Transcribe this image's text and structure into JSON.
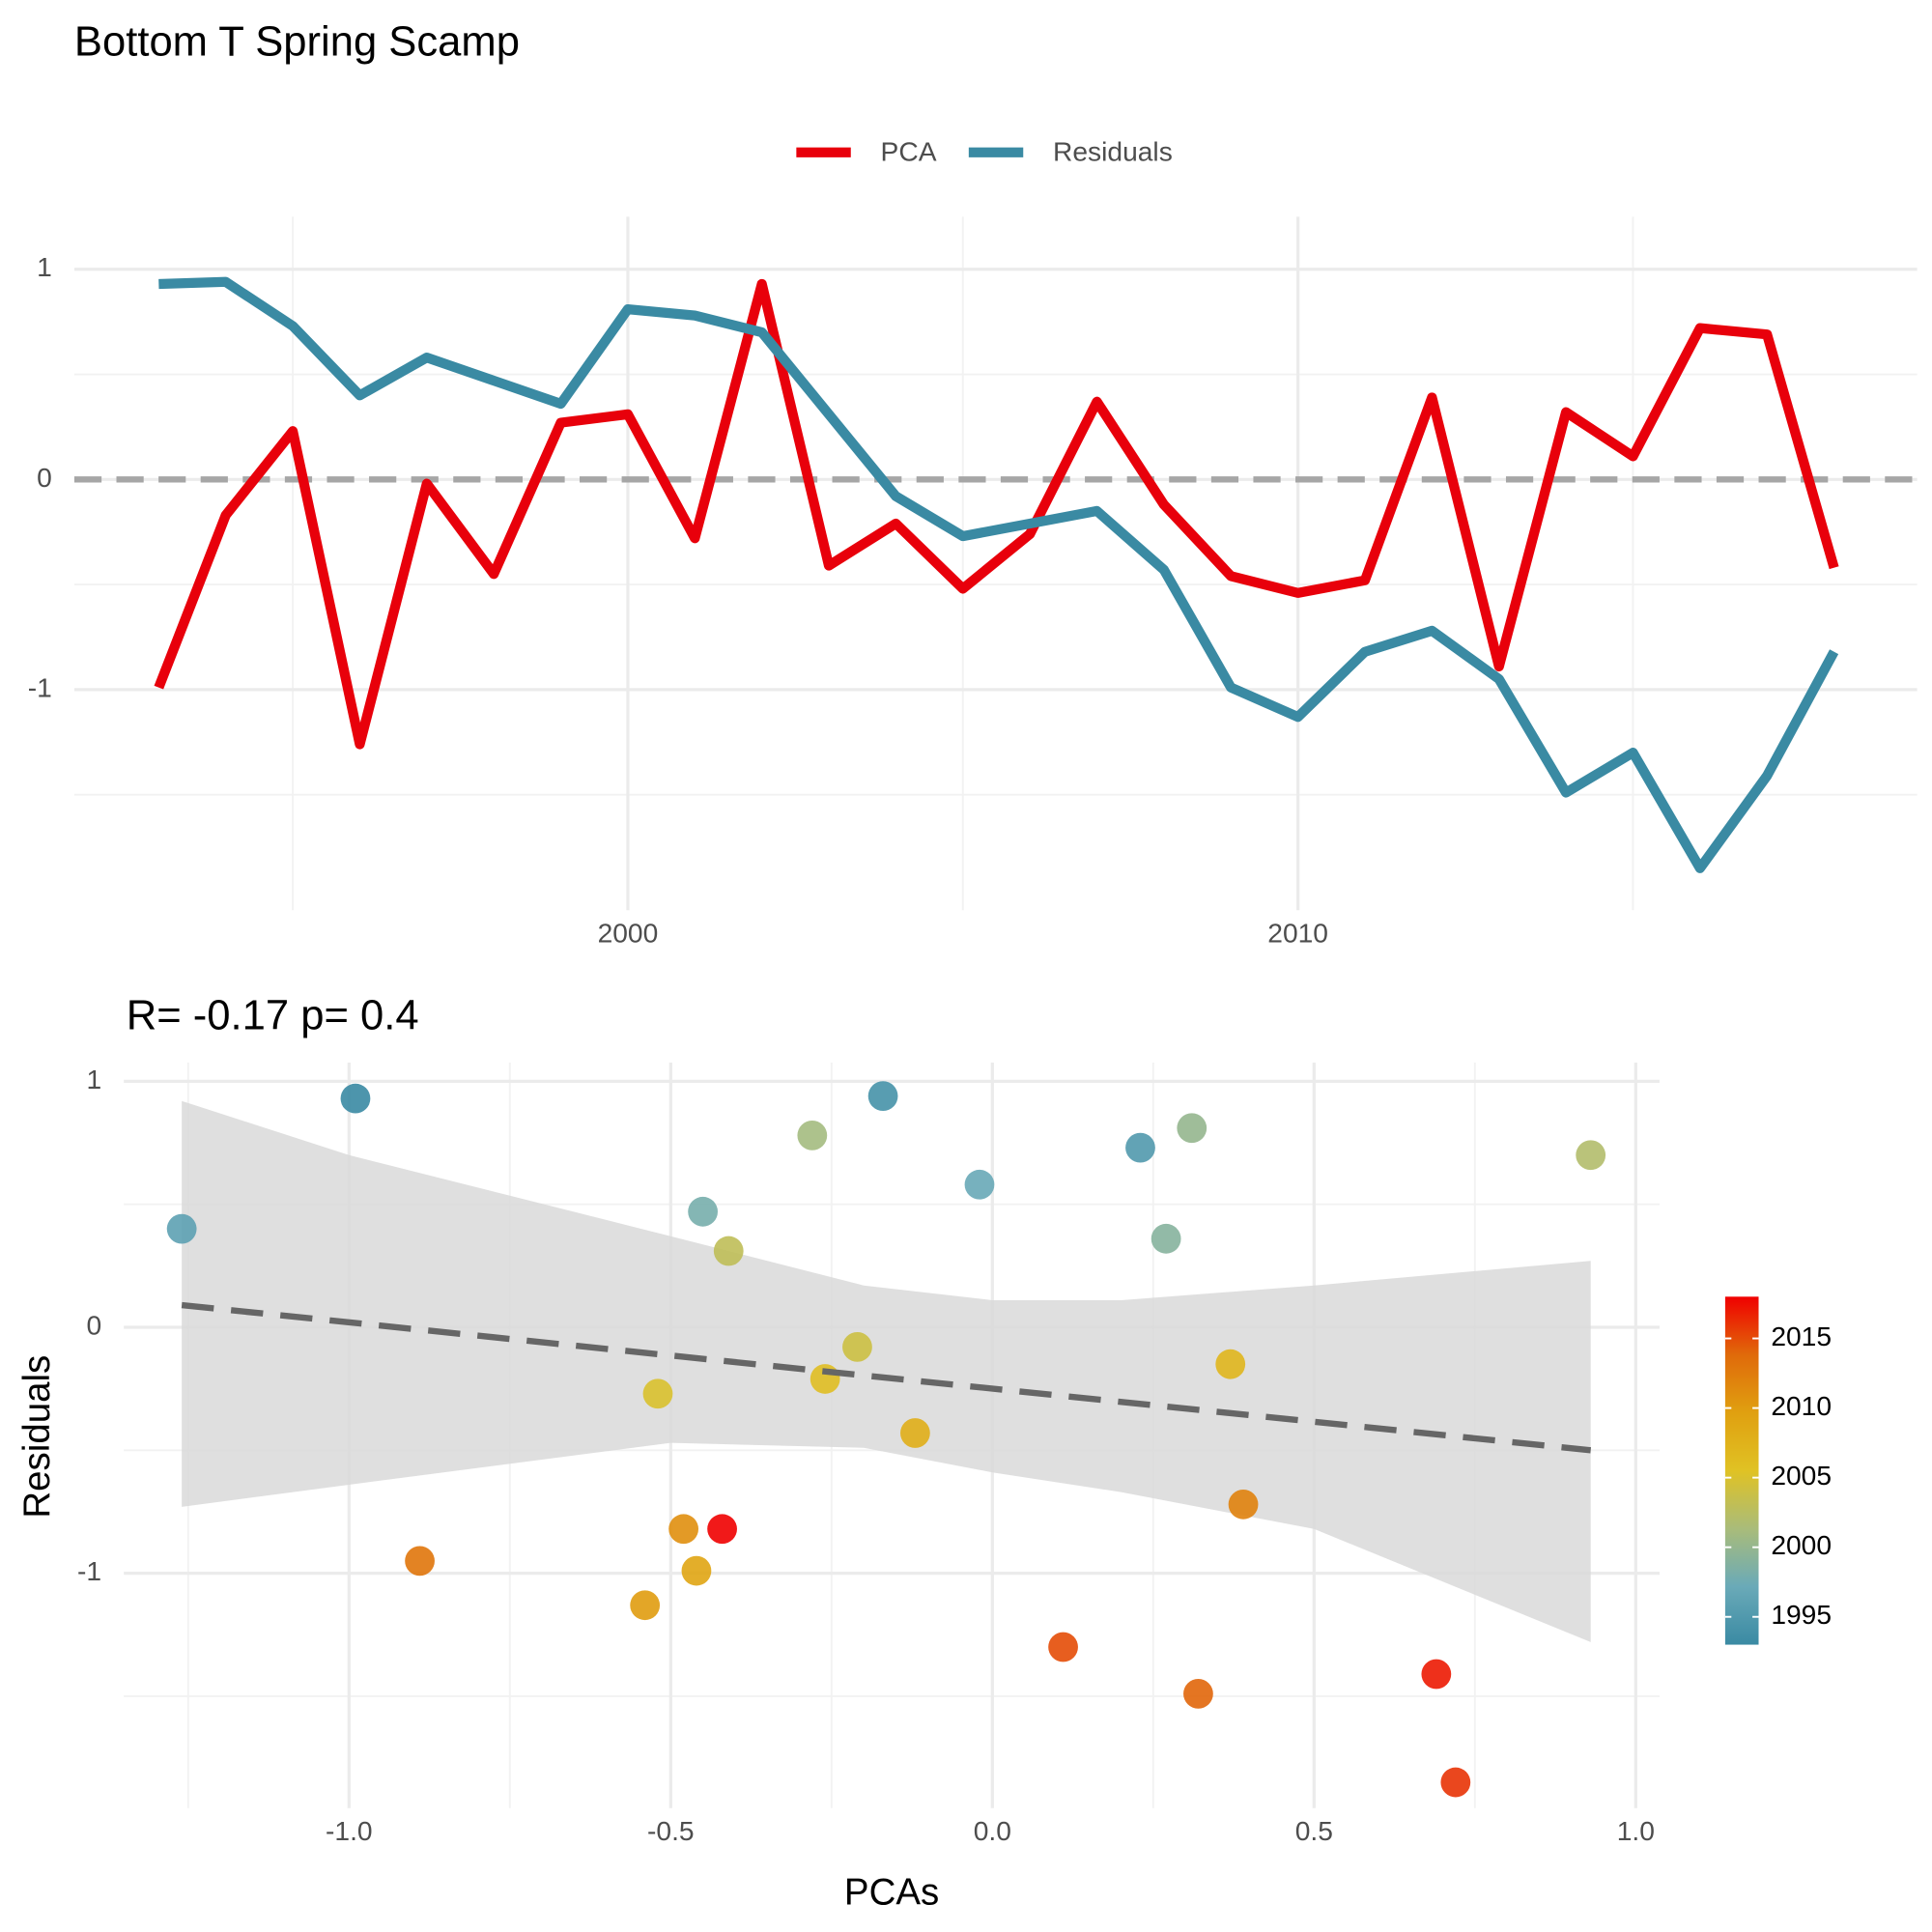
{
  "chart_data": [
    {
      "type": "line",
      "title": "Bottom T Spring Scamp",
      "x": [
        1993,
        1994,
        1995,
        1996,
        1997,
        1998,
        1999,
        2000,
        2001,
        2002,
        2003,
        2004,
        2005,
        2006,
        2007,
        2008,
        2009,
        2010,
        2011,
        2012,
        2013,
        2014,
        2015,
        2016,
        2017,
        2018
      ],
      "series": [
        {
          "name": "PCA",
          "color": "#e8000b",
          "values": [
            -0.99,
            -0.17,
            0.23,
            -1.26,
            -0.02,
            -0.45,
            0.27,
            0.31,
            -0.28,
            0.93,
            -0.41,
            -0.21,
            -0.52,
            -0.26,
            0.37,
            -0.12,
            -0.46,
            -0.54,
            -0.48,
            0.39,
            -0.89,
            0.32,
            0.11,
            0.72,
            0.69,
            -0.42
          ]
        },
        {
          "name": "Residuals",
          "color": "#3a8aa3",
          "values": [
            0.93,
            0.94,
            0.73,
            0.4,
            0.58,
            0.47,
            0.36,
            0.81,
            0.78,
            0.7,
            0.31,
            -0.08,
            -0.27,
            -0.21,
            -0.15,
            -0.43,
            -0.99,
            -1.13,
            -0.82,
            -0.72,
            -0.95,
            -1.49,
            -1.3,
            -1.85,
            -1.41,
            -0.82
          ]
        }
      ],
      "xlim": [
        1991.74,
        2019.24
      ],
      "xticks": [
        2000,
        2010
      ],
      "ylim": [
        -2.05,
        1.25
      ],
      "yticks": [
        -1,
        0,
        1
      ],
      "hline": 0,
      "grid": true,
      "legend": "top"
    },
    {
      "type": "scatter",
      "subtitle": "R= -0.17  p= 0.4",
      "x_label": "PCAs",
      "y_label": "Residuals",
      "x": [
        -0.99,
        -0.17,
        0.23,
        -1.26,
        -0.02,
        -0.45,
        0.27,
        0.31,
        -0.28,
        0.93,
        -0.41,
        -0.21,
        -0.52,
        -0.26,
        0.37,
        -0.12,
        -0.46,
        -0.54,
        -0.48,
        0.39,
        -0.89,
        0.32,
        0.11,
        0.72,
        0.69,
        -0.42
      ],
      "y": [
        0.93,
        0.94,
        0.73,
        0.4,
        0.58,
        0.47,
        0.36,
        0.81,
        0.78,
        0.7,
        0.31,
        -0.08,
        -0.27,
        -0.21,
        -0.15,
        -0.43,
        -0.99,
        -1.13,
        -0.82,
        -0.72,
        -0.95,
        -1.49,
        -1.3,
        -1.85,
        -1.41,
        -0.82
      ],
      "years": [
        1993,
        1994,
        1995,
        1996,
        1997,
        1998,
        1999,
        2000,
        2001,
        2002,
        2003,
        2004,
        2005,
        2006,
        2007,
        2008,
        2009,
        2010,
        2011,
        2012,
        2013,
        2014,
        2015,
        2016,
        2017,
        2018
      ],
      "fit": {
        "x": [
          -1.26,
          0.93
        ],
        "y": [
          0.09,
          -0.5
        ],
        "color": "#666666"
      },
      "band": {
        "x": [
          -1.26,
          -1.0,
          -0.5,
          -0.2,
          0.0,
          0.2,
          0.5,
          0.93
        ],
        "upper": [
          0.92,
          0.7,
          0.37,
          0.17,
          0.11,
          0.11,
          0.17,
          0.27
        ],
        "lower": [
          -0.73,
          -0.64,
          -0.47,
          -0.49,
          -0.59,
          -0.67,
          -0.82,
          -1.28
        ],
        "color": "#d9d9d9"
      },
      "xlim": [
        -1.35,
        1.037
      ],
      "xticks": [
        {
          "value": -1.0,
          "label": "-1.0"
        },
        -0.5,
        {
          "value": 0.0,
          "label": "0.0"
        },
        0.5,
        {
          "value": 1.0,
          "label": "1.0"
        }
      ],
      "ylim": [
        -1.955,
        1.076
      ],
      "yticks": [
        -1,
        0,
        1
      ],
      "grid": true,
      "colorbar": {
        "limits": [
          1993,
          2018
        ],
        "ticks": [
          1995,
          2000,
          2005,
          2010,
          2015
        ],
        "colors": [
          "#3a8aa3",
          "#6aaab8",
          "#a9bc7a",
          "#e0c224",
          "#e0a010",
          "#e06a0a",
          "#f00000"
        ]
      }
    }
  ]
}
